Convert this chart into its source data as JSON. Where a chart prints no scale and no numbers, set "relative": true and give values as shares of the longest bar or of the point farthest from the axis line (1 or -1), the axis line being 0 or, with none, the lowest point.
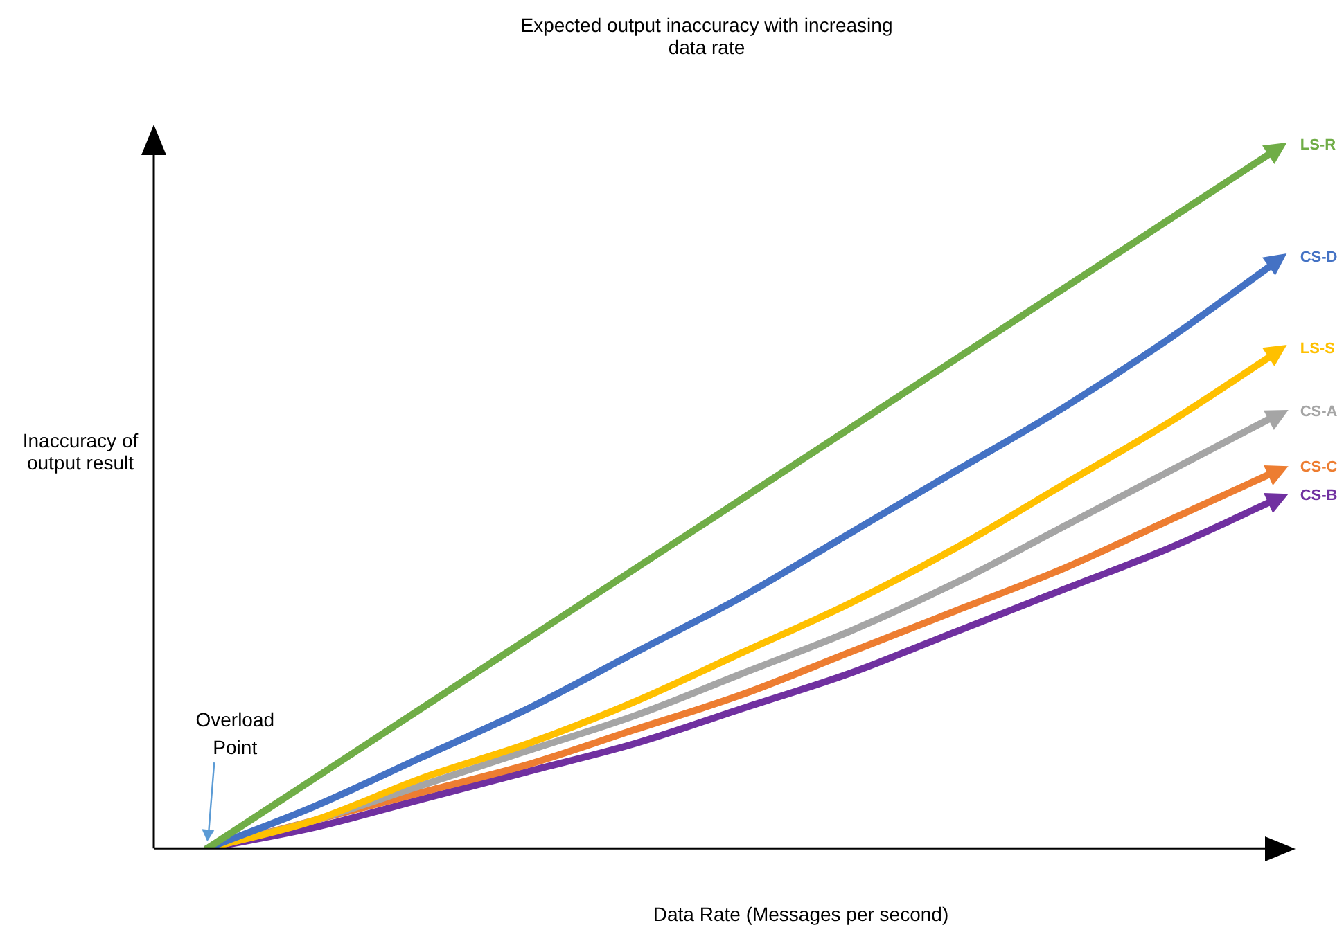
{
  "chart_data": {
    "type": "line",
    "title": "Expected output inaccuracy with increasing data rate",
    "xlabel": "Data Rate (Messages per second)",
    "ylabel": "Inaccuracy of output result",
    "relative": true,
    "grid": false,
    "legend": false,
    "marker": "none",
    "annotations": [
      "Overload Point"
    ],
    "categories": [
      null,
      null,
      null,
      null,
      null,
      null,
      null,
      null,
      null,
      null,
      null
    ],
    "series": [
      {
        "name": "LS-R",
        "color": "#70ad47",
        "values": [
          0,
          0.1,
          0.2,
          0.3,
          0.4,
          0.5,
          0.6,
          0.7,
          0.8,
          0.9,
          1
        ]
      },
      {
        "name": "CS-D",
        "color": "#4472c4",
        "values": [
          0,
          0.06,
          0.13,
          0.2,
          0.28,
          0.36,
          0.45,
          0.54,
          0.63,
          0.73,
          0.84
        ]
      },
      {
        "name": "LS-S",
        "color": "#ffc000",
        "values": [
          0,
          0.04,
          0.1,
          0.15,
          0.21,
          0.28,
          0.35,
          0.43,
          0.52,
          0.61,
          0.71
        ]
      },
      {
        "name": "CS-A",
        "color": "#a5a5a5",
        "values": [
          0,
          0.04,
          0.09,
          0.14,
          0.19,
          0.25,
          0.31,
          0.38,
          0.46,
          0.54,
          0.62
        ]
      },
      {
        "name": "CS-C",
        "color": "#ed7d31",
        "values": [
          0,
          0.04,
          0.08,
          0.12,
          0.17,
          0.22,
          0.28,
          0.34,
          0.4,
          0.47,
          0.54
        ]
      },
      {
        "name": "CS-B",
        "color": "#7030a0",
        "values": [
          0,
          0.03,
          0.07,
          0.11,
          0.15,
          0.2,
          0.25,
          0.31,
          0.37,
          0.43,
          0.5
        ]
      }
    ]
  }
}
